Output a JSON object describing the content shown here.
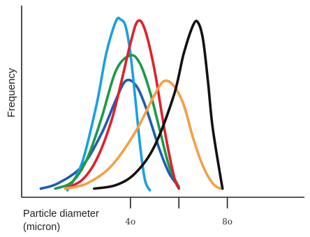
{
  "chart_data": {
    "type": "line",
    "ylabel": "Frequency",
    "xlabel_line1": "Particle diameter",
    "xlabel_line2": "(micron)",
    "xlim": [
      0,
      100
    ],
    "ylim": [
      0,
      1
    ],
    "x_ticks": [
      {
        "value": 40,
        "label": "4o"
      },
      {
        "value": 60,
        "label": ""
      },
      {
        "value": 80,
        "label": "8o"
      }
    ],
    "grid": false,
    "legend": "none",
    "series": [
      {
        "color": "#1b5db0",
        "x": [
          3,
          10,
          20,
          28,
          34,
          38,
          42,
          46,
          52,
          56,
          60
        ],
        "y": [
          0.01,
          0.04,
          0.14,
          0.33,
          0.53,
          0.64,
          0.62,
          0.5,
          0.24,
          0.1,
          0.02
        ]
      },
      {
        "color": "#1aa0e0",
        "x": [
          14,
          20,
          26,
          30,
          34,
          36,
          38,
          40,
          42,
          44,
          46,
          48
        ],
        "y": [
          0.0,
          0.16,
          0.5,
          0.8,
          0.99,
          1.0,
          0.96,
          0.8,
          0.54,
          0.26,
          0.06,
          0.0
        ]
      },
      {
        "color": "#1a9a48",
        "x": [
          9,
          16,
          22,
          28,
          34,
          40,
          44,
          48,
          52,
          56,
          60
        ],
        "y": [
          0.01,
          0.05,
          0.18,
          0.42,
          0.7,
          0.79,
          0.74,
          0.58,
          0.36,
          0.14,
          0.02
        ]
      },
      {
        "color": "#e0202a",
        "x": [
          13,
          20,
          26,
          32,
          36,
          40,
          43,
          46,
          50,
          54,
          58,
          60
        ],
        "y": [
          0.01,
          0.06,
          0.18,
          0.4,
          0.62,
          0.86,
          0.99,
          0.94,
          0.7,
          0.36,
          0.08,
          0.01
        ]
      },
      {
        "color": "#f4a040",
        "x": [
          13,
          22,
          32,
          42,
          50,
          54,
          58,
          62,
          66,
          70,
          74,
          77
        ],
        "y": [
          0.01,
          0.04,
          0.14,
          0.34,
          0.56,
          0.64,
          0.61,
          0.5,
          0.3,
          0.14,
          0.04,
          0.01
        ]
      },
      {
        "color": "#111111",
        "x": [
          25,
          34,
          42,
          50,
          58,
          62,
          66,
          68,
          70,
          72,
          74,
          78
        ],
        "y": [
          0.01,
          0.03,
          0.1,
          0.26,
          0.56,
          0.8,
          0.97,
          0.98,
          0.88,
          0.64,
          0.36,
          0.01
        ]
      }
    ]
  }
}
